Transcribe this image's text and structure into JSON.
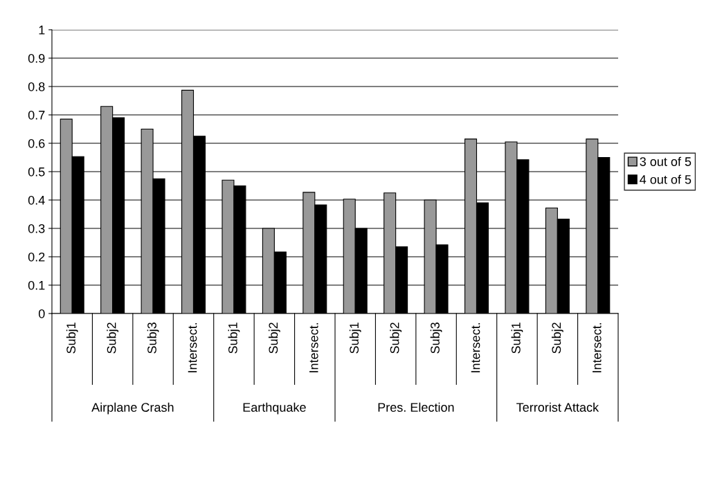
{
  "chart_data": {
    "type": "bar",
    "categories": [
      "Subj1",
      "Subj2",
      "Subj3",
      "Intersect.",
      "Subj1",
      "Subj2",
      "Intersect.",
      "Subj1",
      "Subj2",
      "Subj3",
      "Intersect.",
      "Subj1",
      "Subj2",
      "Intersect."
    ],
    "series": [
      {
        "name": "3 out of 5",
        "color": "#999999",
        "values": [
          0.685,
          0.73,
          0.65,
          0.787,
          0.47,
          0.3,
          0.427,
          0.403,
          0.425,
          0.4,
          0.615,
          0.605,
          0.372,
          0.615
        ]
      },
      {
        "name": "4 out of 5",
        "color": "#000000",
        "values": [
          0.553,
          0.69,
          0.475,
          0.625,
          0.45,
          0.217,
          0.383,
          0.3,
          0.235,
          0.242,
          0.39,
          0.542,
          0.333,
          0.55
        ]
      }
    ],
    "annotations": [
      "Airplane Crash",
      "Earthquake",
      "Pres. Election",
      "Terrorist Attack"
    ],
    "ylim": [
      0,
      1
    ],
    "yticks": [
      0,
      0.1,
      0.2,
      0.3,
      0.4,
      0.5,
      0.6,
      0.7,
      0.8,
      0.9,
      1
    ],
    "grid": "y",
    "legend": "right"
  }
}
